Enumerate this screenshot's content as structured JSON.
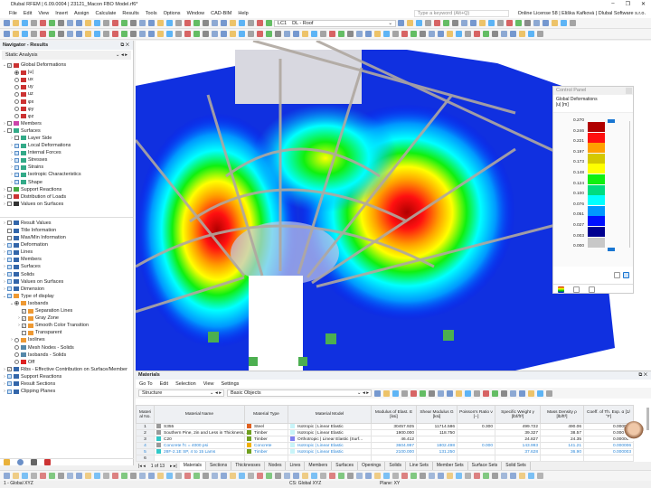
{
  "window": {
    "title": "Dlubal RFEM | 6.09.0004 | 23121_Macon FBO Model.rf6*",
    "controls": [
      "–",
      "❐",
      "✕"
    ]
  },
  "menu": {
    "items": [
      "File",
      "Edit",
      "View",
      "Insert",
      "Assign",
      "Calculate",
      "Results",
      "Tools",
      "Options",
      "Window",
      "CAD-BIM",
      "Help"
    ],
    "search_placeholder": "Type a keyword (Alt+Q)",
    "license": "Online License 58 | Eliška Kafková | Dlubal Software s.r.o."
  },
  "toolbar": {
    "lc_id": "LC1",
    "lc_name": "DL - Roof"
  },
  "navigator": {
    "title": "Navigator - Results",
    "analysis": "Static Analysis",
    "tree_top": [
      {
        "label": "Global Deformations",
        "lvl": 0,
        "chev": "v",
        "ctl": "cb-check",
        "icon": "#c33"
      },
      {
        "label": "|u|",
        "lvl": 1,
        "ctl": "rd-on",
        "icon": "#c33"
      },
      {
        "label": "ux",
        "lvl": 1,
        "ctl": "rd",
        "icon": "#c33"
      },
      {
        "label": "uy",
        "lvl": 1,
        "ctl": "rd",
        "icon": "#c33"
      },
      {
        "label": "uz",
        "lvl": 1,
        "ctl": "rd",
        "icon": "#c33"
      },
      {
        "label": "φx",
        "lvl": 1,
        "ctl": "rd",
        "icon": "#c33"
      },
      {
        "label": "φy",
        "lvl": 1,
        "ctl": "rd",
        "icon": "#c33"
      },
      {
        "label": "φz",
        "lvl": 1,
        "ctl": "rd",
        "icon": "#c33"
      },
      {
        "label": "Members",
        "lvl": 0,
        "chev": ">",
        "ctl": "cb",
        "icon": "#c4a"
      },
      {
        "label": "Surfaces",
        "lvl": 0,
        "chev": "v",
        "ctl": "cb",
        "icon": "#3a8"
      },
      {
        "label": "Layer Side",
        "lvl": 1,
        "chev": ">",
        "ctl": "cb",
        "icon": "#3a8"
      },
      {
        "label": "Local Deformations",
        "lvl": 1,
        "chev": ">",
        "ctl": "cb-blue",
        "icon": "#3a8"
      },
      {
        "label": "Internal Forces",
        "lvl": 1,
        "chev": ">",
        "ctl": "cb-blue",
        "icon": "#3a8"
      },
      {
        "label": "Stresses",
        "lvl": 1,
        "chev": ">",
        "ctl": "cb-blue",
        "icon": "#3a8"
      },
      {
        "label": "Strains",
        "lvl": 1,
        "chev": ">",
        "ctl": "cb-blue",
        "icon": "#3a8"
      },
      {
        "label": "Isotropic Characteristics",
        "lvl": 1,
        "chev": ">",
        "ctl": "cb-blue",
        "icon": "#3a8"
      },
      {
        "label": "Shape",
        "lvl": 1,
        "chev": ">",
        "ctl": "cb-blue",
        "icon": "#3a8"
      },
      {
        "label": "Support Reactions",
        "lvl": 0,
        "chev": ">",
        "ctl": "cb",
        "icon": "#4a4"
      },
      {
        "label": "Distribution of Loads",
        "lvl": 0,
        "chev": ">",
        "ctl": "cb",
        "icon": "#c33"
      },
      {
        "label": "Values on Surfaces",
        "lvl": 0,
        "chev": ">",
        "ctl": "cb",
        "icon": "#333"
      }
    ],
    "tree_bottom": [
      {
        "label": "Result Values",
        "lvl": 0,
        "chev": ">",
        "ctl": "cb",
        "icon": "#36a"
      },
      {
        "label": "Title Information",
        "lvl": 0,
        "ctl": "cb",
        "icon": "#36a"
      },
      {
        "label": "Max/Min Information",
        "lvl": 0,
        "ctl": "cb",
        "icon": "#36a"
      },
      {
        "label": "Deformation",
        "lvl": 0,
        "chev": ">",
        "ctl": "cb-blue",
        "icon": "#36a"
      },
      {
        "label": "Lines",
        "lvl": 0,
        "chev": ">",
        "ctl": "cb-blue",
        "icon": "#36a"
      },
      {
        "label": "Members",
        "lvl": 0,
        "chev": ">",
        "ctl": "cb-blue",
        "icon": "#36a"
      },
      {
        "label": "Surfaces",
        "lvl": 0,
        "chev": ">",
        "ctl": "cb-blue",
        "icon": "#36a"
      },
      {
        "label": "Solids",
        "lvl": 0,
        "chev": ">",
        "ctl": "cb-blue",
        "icon": "#36a"
      },
      {
        "label": "Values on Surfaces",
        "lvl": 0,
        "chev": ">",
        "ctl": "cb-blue",
        "icon": "#36a"
      },
      {
        "label": "Dimension",
        "lvl": 0,
        "chev": ">",
        "ctl": "cb-blue",
        "icon": "#36a"
      },
      {
        "label": "Type of display",
        "lvl": 0,
        "chev": "v",
        "ctl": "cb-blue",
        "icon": "#e93"
      },
      {
        "label": "Isobands",
        "lvl": 1,
        "chev": "v",
        "ctl": "rd-on",
        "icon": "#e93"
      },
      {
        "label": "Separation Lines",
        "lvl": 2,
        "ctl": "cb-check",
        "icon": "#e93"
      },
      {
        "label": "Gray Zone",
        "lvl": 2,
        "chev": ">",
        "ctl": "cb-check",
        "icon": "#e93"
      },
      {
        "label": "Smooth Color Transition",
        "lvl": 2,
        "chev": ">",
        "ctl": "cb-check",
        "icon": "#e93"
      },
      {
        "label": "Transparent",
        "lvl": 2,
        "ctl": "cb",
        "icon": "#e93"
      },
      {
        "label": "Isolines",
        "lvl": 1,
        "chev": ">",
        "ctl": "rd",
        "icon": "#e93"
      },
      {
        "label": "Mesh Nodes - Solids",
        "lvl": 1,
        "ctl": "rd",
        "icon": "#58a"
      },
      {
        "label": "Isobands - Solids",
        "lvl": 1,
        "ctl": "rd",
        "icon": "#58a"
      },
      {
        "label": "Off",
        "lvl": 1,
        "ctl": "rd",
        "icon": "#d22"
      },
      {
        "label": "Ribs - Effective Contribution on Surface/Member",
        "lvl": 0,
        "chev": ">",
        "ctl": "cb-check",
        "icon": "#36a"
      },
      {
        "label": "Support Reactions",
        "lvl": 0,
        "chev": ">",
        "ctl": "cb-blue",
        "icon": "#36a"
      },
      {
        "label": "Result Sections",
        "lvl": 0,
        "chev": ">",
        "ctl": "cb-blue",
        "icon": "#36a"
      },
      {
        "label": "Clipping Planes",
        "lvl": 0,
        "chev": ">",
        "ctl": "cb-blue",
        "icon": "#36a"
      }
    ]
  },
  "control_panel": {
    "title": "Control Panel",
    "heading": "Global Deformations",
    "unit": "|u| [m]",
    "legend": [
      {
        "v": "0.270",
        "c": "#b00000"
      },
      {
        "v": "0.246",
        "c": "#ff1010"
      },
      {
        "v": "0.221",
        "c": "#ffa000"
      },
      {
        "v": "0.197",
        "c": "#d4c800"
      },
      {
        "v": "0.173",
        "c": "#ffff00"
      },
      {
        "v": "0.148",
        "c": "#10f010"
      },
      {
        "v": "0.124",
        "c": "#00dc80"
      },
      {
        "v": "0.100",
        "c": "#00ffff"
      },
      {
        "v": "0.076",
        "c": "#0098ff"
      },
      {
        "v": "0.051",
        "c": "#0010ff"
      },
      {
        "v": "0.027",
        "c": "#000090"
      },
      {
        "v": "0.003",
        "c": "#c8c8c8"
      },
      {
        "v": "0.000",
        "c": null
      }
    ]
  },
  "materials": {
    "title": "Materials",
    "menu": [
      "Go To",
      "Edit",
      "Selection",
      "View",
      "Settings"
    ],
    "filter1": "Structure",
    "filter2": "Basic Objects",
    "columns": [
      "Material No.",
      "Material Name",
      "Material Type",
      "Material Model",
      "Modulus of Elast. E [ksi]",
      "Shear Modulus G [ksi]",
      "Poisson's Ratio ν [--]",
      "Specific Weight γ [lbf/ft³]",
      "Mass Density ρ [lb/ft³]",
      "Coeff. of Th. Exp. α [1/°F]"
    ],
    "rows": [
      {
        "no": "1",
        "name": "S355",
        "nc": "#999",
        "type": "Steel",
        "tc": "#e06020",
        "model": "Isotropic | Linear Elastic",
        "mc": "#c8f4f8",
        "E": "30457.925",
        "G": "11714.586",
        "nu": "0.300",
        "gamma": "499.722",
        "rho": "490.06",
        "alpha": "0.000007",
        "blue": false
      },
      {
        "no": "2",
        "name": "Southern Pine, 2in and Less in Thickness, ...",
        "nc": "#999",
        "type": "Timber",
        "tc": "#70a020",
        "model": "Isotropic | Linear Elastic",
        "mc": "#c8f4f8",
        "E": "1900.000",
        "G": "118.750",
        "nu": "",
        "gamma": "39.327",
        "rho": "38.57",
        "alpha": "0.000003",
        "blue": false
      },
      {
        "no": "3",
        "name": "C20",
        "nc": "#30c8c8",
        "type": "Timber",
        "tc": "#70a020",
        "model": "Orthotropic | Linear Elastic (Surf...",
        "mc": "#8080f0",
        "E": "46.412",
        "G": "",
        "nu": "",
        "gamma": "24.827",
        "rho": "24.35",
        "alpha": "0.000003",
        "blue": false
      },
      {
        "no": "4",
        "name": "Concrete f'c = 4000 psi",
        "nc": "#999",
        "type": "Concrete",
        "tc": "#f0b000",
        "model": "Isotropic | Linear Elastic",
        "mc": "#c8f4f8",
        "E": "3604.997",
        "G": "1802.498",
        "nu": "0.000",
        "gamma": "143.993",
        "rho": "141.21",
        "alpha": "0.000006",
        "blue": true
      },
      {
        "no": "5",
        "name": "28F-2.1E SP, 4 to 15 Lams",
        "nc": "#30c8c8",
        "type": "Timber",
        "tc": "#70a020",
        "model": "Isotropic | Linear Elastic",
        "mc": "#c8f4f8",
        "E": "2100.000",
        "G": "131.250",
        "nu": "",
        "gamma": "37.628",
        "rho": "36.90",
        "alpha": "0.000003",
        "blue": true
      },
      {
        "no": "6",
        "name": "",
        "nc": null,
        "type": "",
        "tc": null,
        "model": "",
        "mc": null,
        "E": "",
        "G": "",
        "nu": "",
        "gamma": "",
        "rho": "",
        "alpha": "",
        "blue": false
      }
    ],
    "pager": "1 of 13",
    "tabs": [
      "Materials",
      "Sections",
      "Thicknesses",
      "Nodes",
      "Lines",
      "Members",
      "Surfaces",
      "Openings",
      "Solids",
      "Line Sets",
      "Member Sets",
      "Surface Sets",
      "Solid Sets"
    ]
  },
  "status": {
    "view": "1 - Global XYZ",
    "cs": "CS: Global XYZ",
    "plane": "Plane: XY"
  }
}
